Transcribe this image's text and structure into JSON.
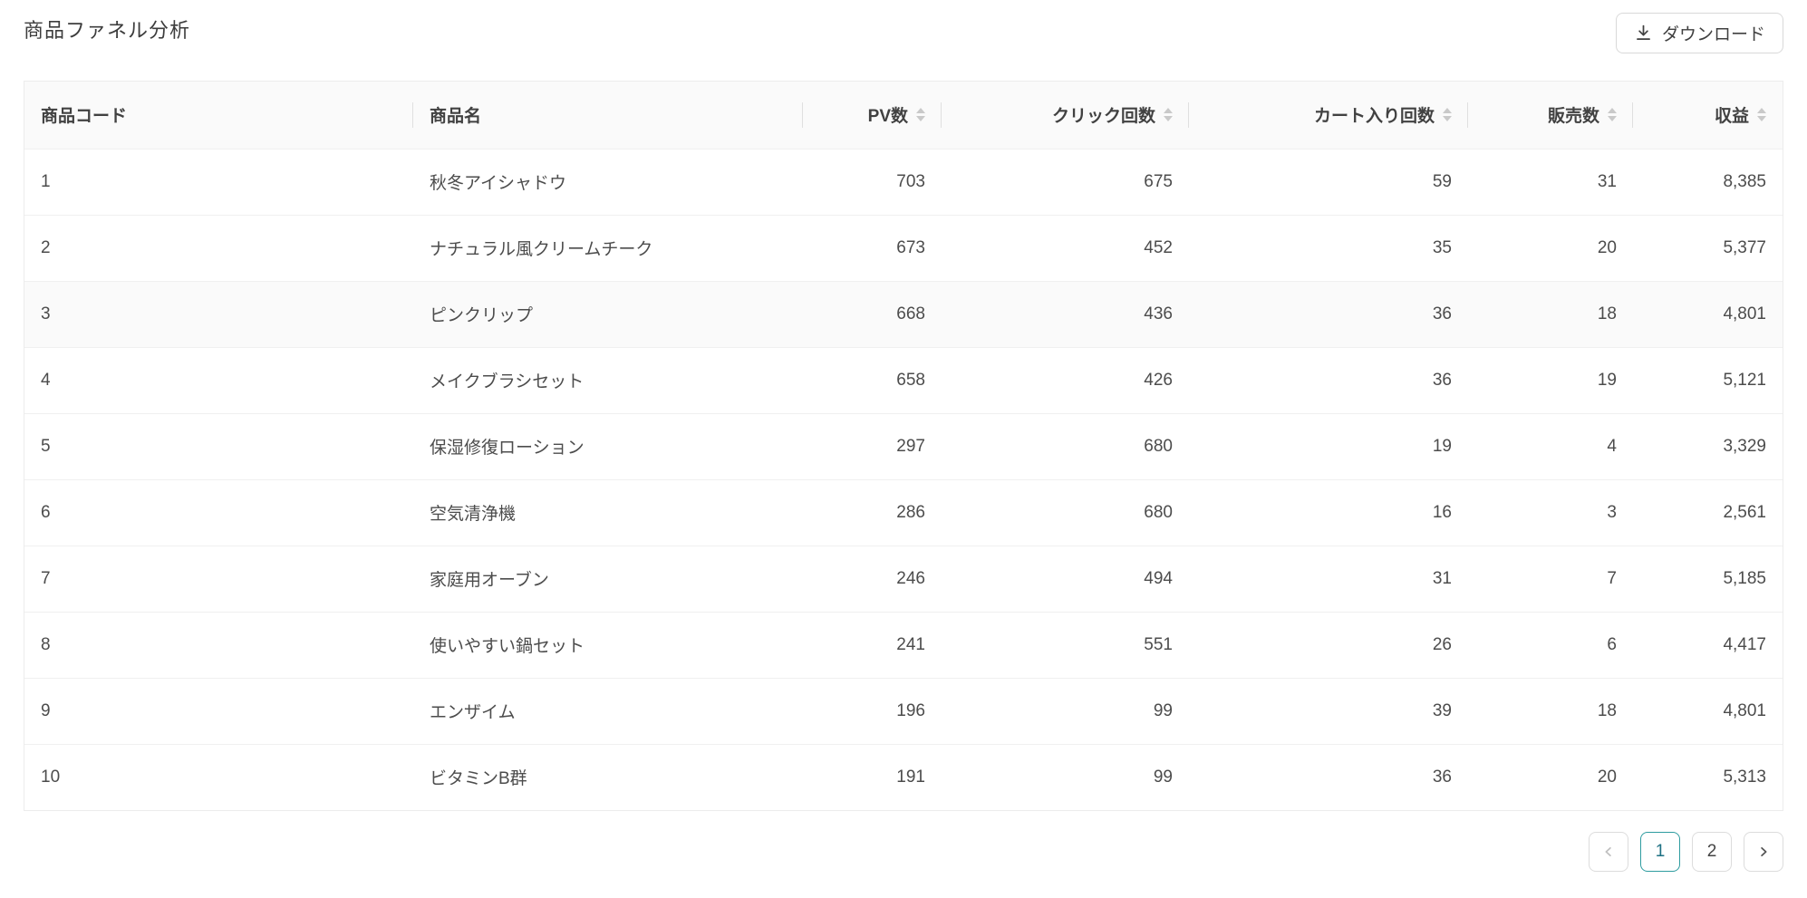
{
  "header": {
    "title": "商品ファネル分析",
    "download_label": "ダウンロード"
  },
  "table": {
    "columns": [
      {
        "key": "code",
        "label": "商品コード",
        "align": "left",
        "sortable": false
      },
      {
        "key": "name",
        "label": "商品名",
        "align": "left",
        "sortable": false
      },
      {
        "key": "pv",
        "label": "PV数",
        "align": "right",
        "sortable": true
      },
      {
        "key": "clicks",
        "label": "クリック回数",
        "align": "right",
        "sortable": true
      },
      {
        "key": "cart",
        "label": "カート入り回数",
        "align": "right",
        "sortable": true
      },
      {
        "key": "sales",
        "label": "販売数",
        "align": "right",
        "sortable": true
      },
      {
        "key": "revenue",
        "label": "収益",
        "align": "right",
        "sortable": true
      }
    ],
    "rows": [
      {
        "code": "1",
        "name": "秋冬アイシャドウ",
        "pv": "703",
        "clicks": "675",
        "cart": "59",
        "sales": "31",
        "revenue": "8,385"
      },
      {
        "code": "2",
        "name": "ナチュラル風クリームチーク",
        "pv": "673",
        "clicks": "452",
        "cart": "35",
        "sales": "20",
        "revenue": "5,377"
      },
      {
        "code": "3",
        "name": "ピンクリップ",
        "pv": "668",
        "clicks": "436",
        "cart": "36",
        "sales": "18",
        "revenue": "4,801"
      },
      {
        "code": "4",
        "name": "メイクブラシセット",
        "pv": "658",
        "clicks": "426",
        "cart": "36",
        "sales": "19",
        "revenue": "5,121"
      },
      {
        "code": "5",
        "name": "保湿修復ローション",
        "pv": "297",
        "clicks": "680",
        "cart": "19",
        "sales": "4",
        "revenue": "3,329"
      },
      {
        "code": "6",
        "name": "空気清浄機",
        "pv": "286",
        "clicks": "680",
        "cart": "16",
        "sales": "3",
        "revenue": "2,561"
      },
      {
        "code": "7",
        "name": "家庭用オーブン",
        "pv": "246",
        "clicks": "494",
        "cart": "31",
        "sales": "7",
        "revenue": "5,185"
      },
      {
        "code": "8",
        "name": "使いやすい鍋セット",
        "pv": "241",
        "clicks": "551",
        "cart": "26",
        "sales": "6",
        "revenue": "4,417"
      },
      {
        "code": "9",
        "name": "エンザイム",
        "pv": "196",
        "clicks": "99",
        "cart": "39",
        "sales": "18",
        "revenue": "4,801"
      },
      {
        "code": "10",
        "name": "ビタミンB群",
        "pv": "191",
        "clicks": "99",
        "cart": "36",
        "sales": "20",
        "revenue": "5,313"
      }
    ]
  },
  "pagination": {
    "pages": [
      "1",
      "2"
    ],
    "active_page": "1"
  },
  "colors": {
    "accent_teal": "#2e9ca0",
    "active_page_text": "#1d7083"
  },
  "icons": {
    "download": "download-icon",
    "prev": "chevron-left-icon",
    "next": "chevron-right-icon",
    "sort": "sort-carets-icon"
  }
}
